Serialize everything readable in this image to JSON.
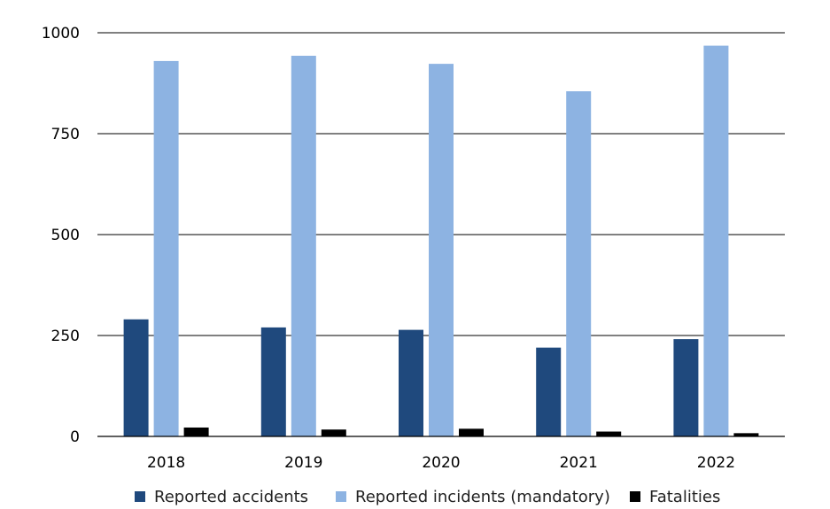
{
  "chart_data": {
    "type": "bar",
    "title": "",
    "xlabel": "",
    "ylabel": "",
    "categories": [
      "2018",
      "2019",
      "2020",
      "2021",
      "2022"
    ],
    "series": [
      {
        "name": "Reported accidents",
        "color": "#1f497d",
        "values": [
          290,
          270,
          264,
          220,
          241
        ]
      },
      {
        "name": "Reported incidents (mandatory)",
        "color": "#8db3e2",
        "values": [
          930,
          943,
          923,
          855,
          968
        ]
      },
      {
        "name": "Fatalities",
        "color": "#000000",
        "values": [
          22,
          17,
          19,
          12,
          8
        ]
      }
    ],
    "ylim": [
      0,
      1000
    ],
    "yticks": [
      0,
      250,
      500,
      750,
      1000
    ],
    "grid": "horizontal",
    "legend_position": "bottom"
  }
}
